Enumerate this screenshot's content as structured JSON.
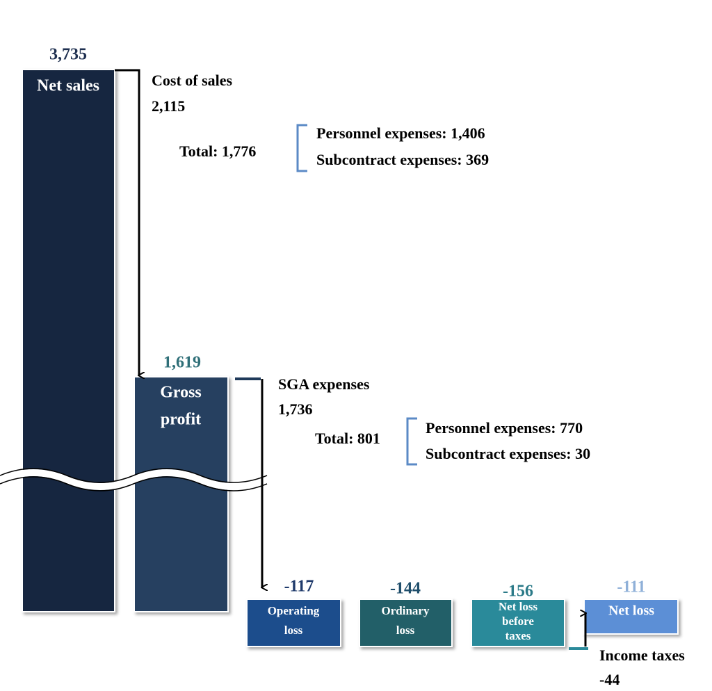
{
  "bars": [
    {
      "value": "3,735",
      "label": [
        "Net sales"
      ]
    },
    {
      "value": "1,619",
      "label": [
        "Gross",
        "profit"
      ]
    },
    {
      "value": "-117",
      "label": [
        "Operating",
        "loss"
      ]
    },
    {
      "value": "-144",
      "label": [
        "Ordinary",
        "loss"
      ]
    },
    {
      "value": "-156",
      "label": [
        "Net loss",
        "before",
        "taxes"
      ]
    },
    {
      "value": "-111",
      "label": [
        "Net loss"
      ]
    }
  ],
  "steps": [
    {
      "label": "Cost of sales",
      "value": "2,115",
      "total": "Total: 1,776",
      "details": [
        "Personnel expenses: 1,406",
        "Subcontract expenses: 369"
      ]
    },
    {
      "label": "SGA expenses",
      "value": "1,736",
      "total": "Total: 801",
      "details": [
        "Personnel expenses: 770",
        "Subcontract expenses: 30"
      ]
    },
    {
      "label": "Income taxes",
      "value": "-44"
    }
  ]
}
